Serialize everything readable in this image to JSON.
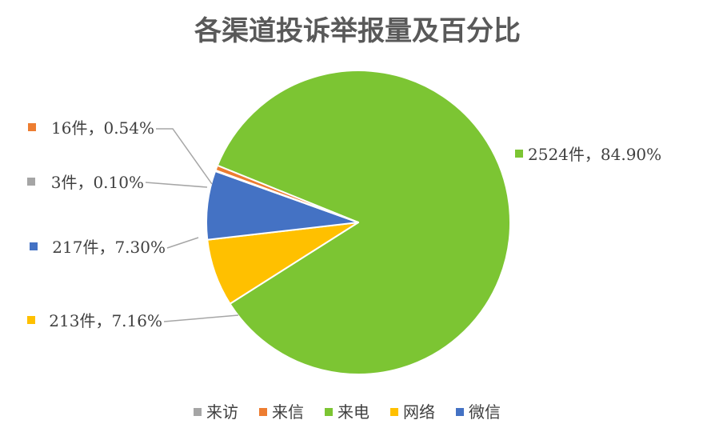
{
  "chart_data": {
    "type": "pie",
    "title": "各渠道投诉举报量及百分比",
    "slices": [
      {
        "name": "来电",
        "value": 2524,
        "percent": 84.9,
        "label": "2524件，84.90%",
        "color": "#7CC533"
      },
      {
        "name": "网络",
        "value": 213,
        "percent": 7.16,
        "label": "213件，7.16%",
        "color": "#FFC000"
      },
      {
        "name": "微信",
        "value": 217,
        "percent": 7.3,
        "label": "217件，7.30%",
        "color": "#4472C4"
      },
      {
        "name": "来访",
        "value": 3,
        "percent": 0.1,
        "label": "3件，0.10%",
        "color": "#A5A5A5"
      },
      {
        "name": "来信",
        "value": 16,
        "percent": 0.54,
        "label": "16件，0.54%",
        "color": "#ED7D31"
      }
    ],
    "legend": {
      "position": "bottom",
      "items": [
        {
          "name": "来访",
          "color": "#A5A5A5"
        },
        {
          "name": "来信",
          "color": "#ED7D31"
        },
        {
          "name": "来电",
          "color": "#7CC533"
        },
        {
          "name": "网络",
          "color": "#FFC000"
        },
        {
          "name": "微信",
          "color": "#4472C4"
        }
      ]
    }
  }
}
